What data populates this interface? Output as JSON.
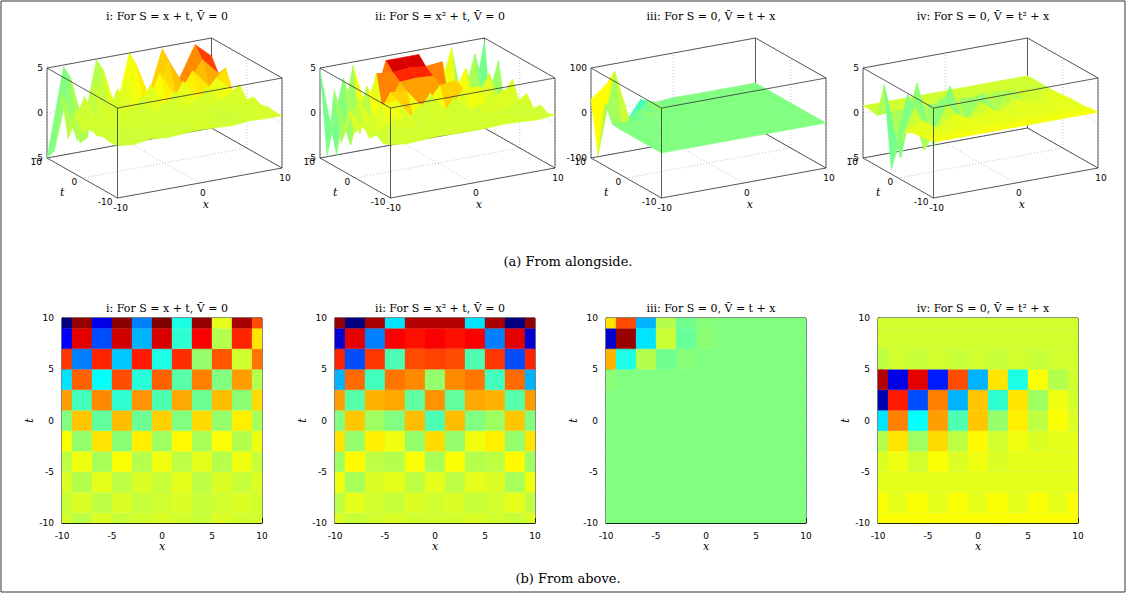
{
  "captions": [
    "(a) From alongside.",
    "(b) From above."
  ],
  "chart_data": [
    {
      "type": "surface",
      "title": "i: For S = x + t, V̄ = 0",
      "xlabel": "x",
      "ylabel": "t",
      "xlim": [
        -10,
        10
      ],
      "ylim": [
        -10,
        10
      ],
      "zlim": [
        -5,
        5
      ],
      "x": [
        -10,
        -8,
        -6,
        -4,
        -2,
        0,
        2,
        4,
        6,
        8,
        10
      ],
      "y": [
        -10,
        -8,
        -6,
        -4,
        -2,
        0,
        2,
        4,
        6,
        8,
        10
      ],
      "z": [
        [
          0.8,
          0.6,
          0.9,
          0.7,
          0.8,
          0.9,
          0.8,
          0.7,
          0.9,
          0.8,
          0.8
        ],
        [
          0.7,
          0.9,
          0.6,
          0.9,
          0.7,
          0.8,
          0.9,
          0.7,
          0.8,
          0.9,
          0.8
        ],
        [
          0.9,
          0.5,
          1.0,
          0.6,
          0.9,
          0.7,
          1.0,
          0.6,
          0.9,
          0.7,
          0.9
        ],
        [
          0.6,
          1.1,
          0.4,
          1.2,
          0.5,
          1.1,
          0.6,
          1.0,
          0.5,
          1.1,
          0.7
        ],
        [
          1.2,
          0.2,
          1.5,
          0.1,
          1.4,
          0.3,
          1.3,
          0.4,
          1.2,
          0.5,
          1.1
        ],
        [
          0.0,
          1.8,
          -0.3,
          1.9,
          -0.2,
          1.7,
          0.0,
          1.6,
          0.2,
          1.4,
          0.4
        ],
        [
          2.2,
          -0.6,
          2.4,
          -0.8,
          2.3,
          -0.5,
          2.1,
          -0.2,
          1.9,
          0.1,
          1.6
        ],
        [
          -1.5,
          2.8,
          -1.2,
          3.0,
          -0.9,
          2.8,
          -0.4,
          2.5,
          0.0,
          2.2,
          0.5
        ],
        [
          3.2,
          -2.5,
          3.4,
          -1.8,
          3.5,
          -1.0,
          3.3,
          0.2,
          2.9,
          0.8,
          2.6
        ],
        [
          -3.8,
          4.0,
          -3.0,
          4.2,
          -2.0,
          4.1,
          -0.8,
          3.8,
          0.5,
          3.4,
          1.5
        ],
        [
          -5.0,
          4.8,
          -4.0,
          4.9,
          -2.5,
          5.0,
          -1.0,
          4.8,
          1.0,
          4.6,
          3.0
        ]
      ],
      "views": [
        {
          "type": "surface",
          "xticks": [
            -10,
            0,
            10
          ],
          "yticks": [
            -10,
            0,
            10
          ],
          "zticks": [
            -5,
            0,
            5
          ]
        },
        {
          "type": "heatmap",
          "xticks": [
            -10,
            -5,
            0,
            5,
            10
          ],
          "yticks": [
            -10,
            -5,
            0,
            5,
            10
          ]
        }
      ]
    },
    {
      "type": "surface",
      "title": "ii: For S = x² + t, V̄ = 0",
      "xlabel": "x",
      "ylabel": "t",
      "xlim": [
        -10,
        10
      ],
      "ylim": [
        -10,
        10
      ],
      "zlim": [
        -5,
        5
      ],
      "x": [
        -10,
        -8,
        -6,
        -4,
        -2,
        0,
        2,
        4,
        6,
        8,
        10
      ],
      "y": [
        -10,
        -8,
        -6,
        -4,
        -2,
        0,
        2,
        4,
        6,
        8,
        10
      ],
      "z": [
        [
          0.9,
          0.7,
          0.8,
          0.9,
          0.8,
          0.8,
          0.8,
          0.9,
          0.8,
          0.7,
          0.9
        ],
        [
          0.6,
          1.0,
          0.8,
          0.7,
          0.9,
          0.8,
          0.9,
          0.7,
          0.8,
          1.0,
          0.6
        ],
        [
          1.1,
          0.4,
          0.9,
          1.0,
          0.6,
          1.0,
          0.6,
          1.0,
          0.9,
          0.4,
          1.1
        ],
        [
          0.3,
          1.3,
          0.6,
          0.5,
          1.2,
          0.4,
          1.2,
          0.5,
          0.6,
          1.3,
          0.3
        ],
        [
          1.5,
          0.2,
          1.4,
          1.1,
          0.2,
          1.6,
          0.2,
          1.1,
          1.4,
          0.2,
          1.5
        ],
        [
          0.0,
          1.8,
          0.3,
          0.0,
          1.9,
          -0.5,
          1.9,
          0.0,
          0.3,
          1.8,
          0.0
        ],
        [
          2.2,
          -0.4,
          2.0,
          2.1,
          -0.3,
          2.3,
          -0.3,
          2.1,
          2.0,
          -0.4,
          2.2
        ],
        [
          -2.0,
          2.7,
          -0.6,
          2.6,
          2.4,
          0.2,
          2.4,
          2.6,
          -0.6,
          2.7,
          -2.0
        ],
        [
          3.4,
          -3.0,
          3.2,
          -0.5,
          3.0,
          3.1,
          3.0,
          -0.5,
          3.2,
          -3.0,
          3.4
        ],
        [
          -4.2,
          4.0,
          -2.5,
          3.8,
          3.6,
          3.8,
          3.6,
          3.8,
          -2.5,
          4.0,
          -4.2
        ],
        [
          4.8,
          -5.0,
          4.6,
          -1.5,
          4.5,
          4.5,
          4.5,
          -1.5,
          4.6,
          -5.0,
          4.8
        ]
      ],
      "views": [
        {
          "type": "surface",
          "xticks": [
            -10,
            0,
            10
          ],
          "yticks": [
            -10,
            0,
            10
          ],
          "zticks": [
            -5,
            0,
            5
          ]
        },
        {
          "type": "heatmap",
          "xticks": [
            -10,
            -5,
            0,
            5,
            10
          ],
          "yticks": [
            -10,
            -5,
            0,
            5,
            10
          ]
        }
      ]
    },
    {
      "type": "surface",
      "title": "iii: For S = 0, V̄ = t + x",
      "xlabel": "x",
      "ylabel": "t",
      "xlim": [
        -10,
        10
      ],
      "ylim": [
        -10,
        10
      ],
      "zlim": [
        -100,
        100
      ],
      "x": [
        -10,
        -8,
        -6,
        -4,
        -2,
        0,
        2,
        4,
        6,
        8,
        10
      ],
      "y": [
        -10,
        -8,
        -6,
        -4,
        -2,
        0,
        2,
        4,
        6,
        8,
        10
      ],
      "z": [
        [
          0,
          0,
          0,
          0,
          0,
          0,
          0,
          0,
          0,
          0,
          0
        ],
        [
          0,
          0,
          0,
          0,
          0,
          0,
          0,
          0,
          0,
          0,
          0
        ],
        [
          0,
          0,
          0,
          0,
          0,
          0,
          0,
          0,
          0,
          0,
          0
        ],
        [
          0,
          0,
          0,
          0,
          0,
          0,
          0,
          0,
          0,
          0,
          0
        ],
        [
          0,
          0,
          0,
          0,
          0,
          0,
          0,
          0,
          0,
          0,
          0
        ],
        [
          0,
          0,
          0,
          0,
          0,
          0,
          0,
          0,
          0,
          0,
          0
        ],
        [
          0,
          0,
          0,
          0,
          0,
          0,
          0,
          0,
          0,
          0,
          0
        ],
        [
          2,
          0,
          0,
          0,
          0,
          0,
          0,
          0,
          0,
          0,
          0
        ],
        [
          40,
          -20,
          10,
          -3,
          1,
          0,
          0,
          0,
          0,
          0,
          0
        ],
        [
          -85,
          95,
          -30,
          15,
          -5,
          2,
          0,
          0,
          0,
          0,
          0
        ],
        [
          30,
          60,
          -40,
          10,
          -3,
          1,
          0,
          0,
          0,
          0,
          0
        ]
      ],
      "views": [
        {
          "type": "surface",
          "xticks": [
            -10,
            0,
            10
          ],
          "yticks": [
            -10,
            0,
            10
          ],
          "zticks": [
            -100,
            0,
            100
          ]
        },
        {
          "type": "heatmap",
          "xticks": [
            -10,
            -5,
            0,
            5,
            10
          ],
          "yticks": [
            -10,
            -5,
            0,
            5,
            10
          ]
        }
      ]
    },
    {
      "type": "surface",
      "title": "iv: For S = 0, V̄ = t² + x",
      "xlabel": "x",
      "ylabel": "t",
      "xlim": [
        -10,
        10
      ],
      "ylim": [
        -10,
        10
      ],
      "zlim": [
        -5,
        5
      ],
      "x": [
        -10,
        -8,
        -6,
        -4,
        -2,
        0,
        2,
        4,
        6,
        8,
        10
      ],
      "y": [
        -10,
        -8,
        -6,
        -4,
        -2,
        0,
        2,
        4,
        6,
        8,
        10
      ],
      "z": [
        [
          1.2,
          1.2,
          1.2,
          1.2,
          1.2,
          1.2,
          1.2,
          1.2,
          1.2,
          1.2,
          1.2
        ],
        [
          1.2,
          1.0,
          1.2,
          1.0,
          1.2,
          1.0,
          1.2,
          1.0,
          1.2,
          1.0,
          1.2
        ],
        [
          1.0,
          1.0,
          1.0,
          1.0,
          1.0,
          1.0,
          1.0,
          1.0,
          1.0,
          1.0,
          1.0
        ],
        [
          0.9,
          1.1,
          0.8,
          1.2,
          0.9,
          1.1,
          0.9,
          1.0,
          1.0,
          1.0,
          1.0
        ],
        [
          0.5,
          1.5,
          0.3,
          1.6,
          0.6,
          1.3,
          0.8,
          1.1,
          0.9,
          1.0,
          1.0
        ],
        [
          -1.5,
          2.5,
          -1.2,
          2.2,
          -0.5,
          1.8,
          0.2,
          1.4,
          0.6,
          1.2,
          0.9
        ],
        [
          -4.5,
          3.5,
          -3.0,
          2.5,
          -2.0,
          1.8,
          -0.8,
          1.5,
          0.3,
          1.1,
          0.8
        ],
        [
          4.5,
          -4.0,
          4.0,
          -3.5,
          3.0,
          -2.0,
          1.5,
          -1.0,
          1.2,
          0.5,
          0.8
        ],
        [
          0.6,
          0.8,
          0.7,
          0.8,
          0.7,
          0.8,
          0.7,
          0.8,
          0.7,
          0.8,
          0.8
        ],
        [
          0.8,
          0.8,
          0.8,
          0.8,
          0.8,
          0.8,
          0.8,
          0.8,
          0.8,
          0.8,
          0.8
        ],
        [
          0.8,
          0.8,
          0.8,
          0.8,
          0.8,
          0.8,
          0.8,
          0.8,
          0.8,
          0.8,
          0.8
        ]
      ],
      "views": [
        {
          "type": "surface",
          "xticks": [
            -10,
            0,
            10
          ],
          "yticks": [
            -10,
            0,
            10
          ],
          "zticks": [
            -5,
            0,
            5
          ]
        },
        {
          "type": "heatmap",
          "xticks": [
            -10,
            -5,
            0,
            5,
            10
          ],
          "yticks": [
            -10,
            -5,
            0,
            5,
            10
          ]
        }
      ]
    }
  ]
}
